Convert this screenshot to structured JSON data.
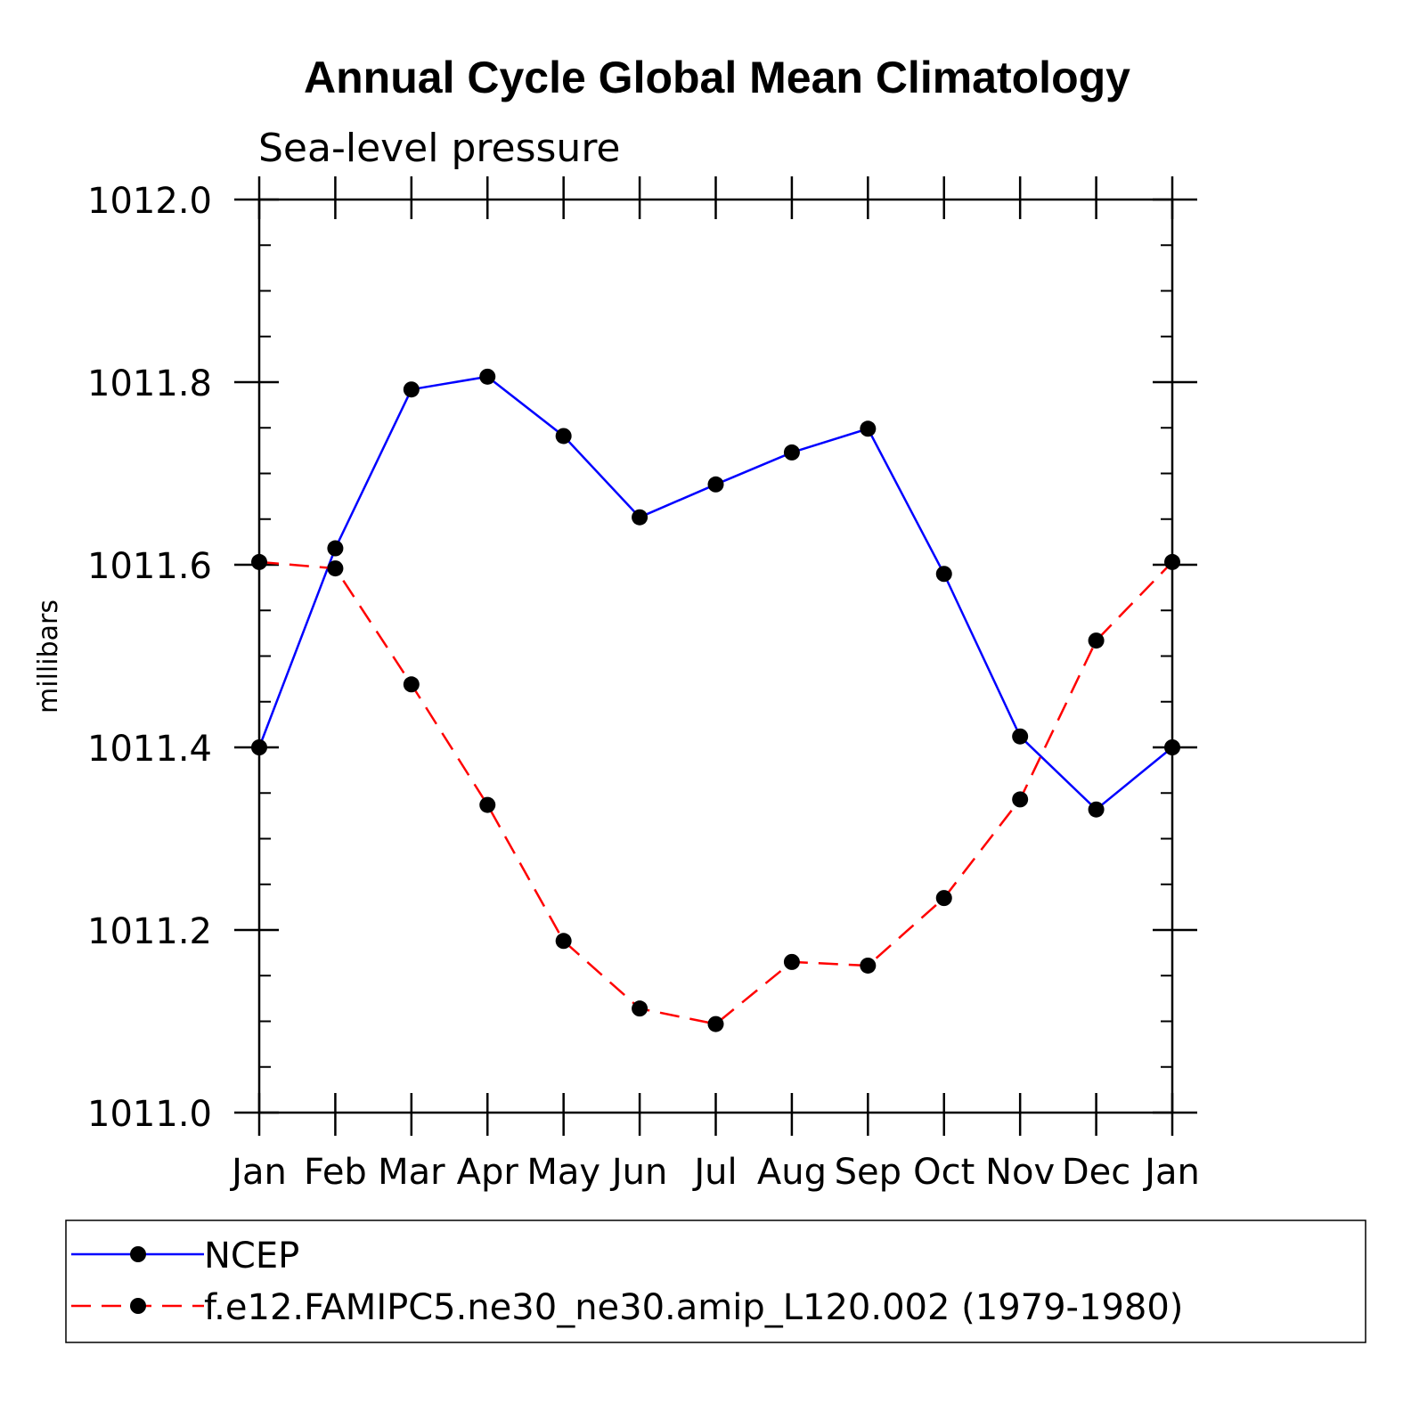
{
  "chart_data": {
    "type": "line",
    "title": "Annual Cycle Global Mean Climatology",
    "subtitle": "Sea-level pressure",
    "xlabel": "",
    "ylabel": "millibars",
    "categories": [
      "Jan",
      "Feb",
      "Mar",
      "Apr",
      "May",
      "Jun",
      "Jul",
      "Aug",
      "Sep",
      "Oct",
      "Nov",
      "Dec",
      "Jan"
    ],
    "ylim": [
      1011.0,
      1012.0
    ],
    "yticks": [
      "1011.0",
      "1011.2",
      "1011.4",
      "1011.6",
      "1011.8",
      "1012.0"
    ],
    "grid": false,
    "legend_position": "bottom",
    "series": [
      {
        "name": "NCEP",
        "color": "#0000ff",
        "dash": "solid",
        "marker": "filled-circle",
        "values": [
          1011.4,
          1011.618,
          1011.792,
          1011.806,
          1011.741,
          1011.652,
          1011.688,
          1011.723,
          1011.749,
          1011.59,
          1011.412,
          1011.332,
          1011.4
        ]
      },
      {
        "name": "f.e12.FAMIPC5.ne30_ne30.amip_L120.002 (1979-1980)",
        "color": "#ff0000",
        "dash": "dashed",
        "marker": "filled-circle",
        "values": [
          1011.603,
          1011.596,
          1011.469,
          1011.337,
          1011.188,
          1011.114,
          1011.097,
          1011.165,
          1011.161,
          1011.235,
          1011.343,
          1011.517,
          1011.603
        ]
      }
    ]
  }
}
